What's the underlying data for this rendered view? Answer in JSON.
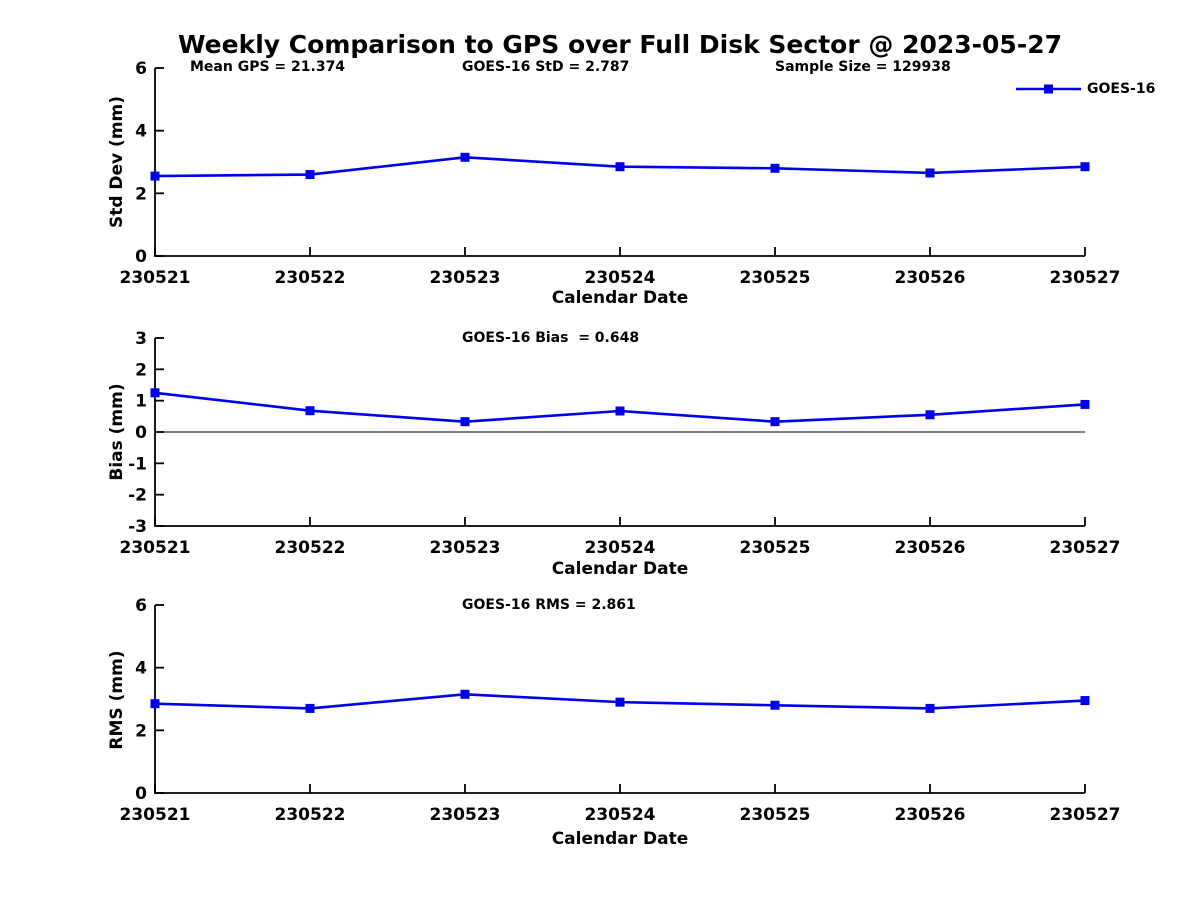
{
  "title": "Weekly Comparison to GPS over Full Disk Sector @ 2023-05-27",
  "legend": {
    "label": "GOES-16"
  },
  "colors": {
    "line": "#0000EE",
    "axis": "#000000",
    "zero_line": "#000000"
  },
  "chart_data": [
    {
      "type": "line",
      "panel": "std-dev",
      "title": "",
      "xlabel": "Calendar Date",
      "ylabel": "Std Dev (mm)",
      "categories": [
        "230521",
        "230522",
        "230523",
        "230524",
        "230525",
        "230526",
        "230527"
      ],
      "series": [
        {
          "name": "GOES-16",
          "values": [
            2.55,
            2.6,
            3.15,
            2.85,
            2.8,
            2.65,
            2.85
          ]
        }
      ],
      "ylim": [
        0,
        6
      ],
      "yticks": [
        0,
        2,
        4,
        6
      ],
      "grid": false,
      "legend_position": "top-right",
      "annotations": [
        "Mean GPS = 21.374",
        "GOES-16 StD = 2.787",
        "Sample Size = 129938"
      ]
    },
    {
      "type": "line",
      "panel": "bias",
      "title": "",
      "xlabel": "Calendar Date",
      "ylabel": "Bias (mm)",
      "categories": [
        "230521",
        "230522",
        "230523",
        "230524",
        "230525",
        "230526",
        "230527"
      ],
      "series": [
        {
          "name": "GOES-16",
          "values": [
            1.25,
            0.68,
            0.33,
            0.67,
            0.33,
            0.55,
            0.88
          ]
        }
      ],
      "ylim": [
        -3,
        3
      ],
      "yticks": [
        -3,
        -2,
        -1,
        0,
        1,
        2,
        3
      ],
      "zero_line": true,
      "grid": false,
      "annotations": [
        "GOES-16 Bias  = 0.648"
      ]
    },
    {
      "type": "line",
      "panel": "rms",
      "title": "",
      "xlabel": "Calendar Date",
      "ylabel": "RMS (mm)",
      "categories": [
        "230521",
        "230522",
        "230523",
        "230524",
        "230525",
        "230526",
        "230527"
      ],
      "series": [
        {
          "name": "GOES-16",
          "values": [
            2.85,
            2.7,
            3.15,
            2.9,
            2.8,
            2.7,
            2.95
          ]
        }
      ],
      "ylim": [
        0,
        6
      ],
      "yticks": [
        0,
        2,
        4,
        6
      ],
      "grid": false,
      "annotations": [
        "GOES-16 RMS = 2.861"
      ]
    }
  ]
}
